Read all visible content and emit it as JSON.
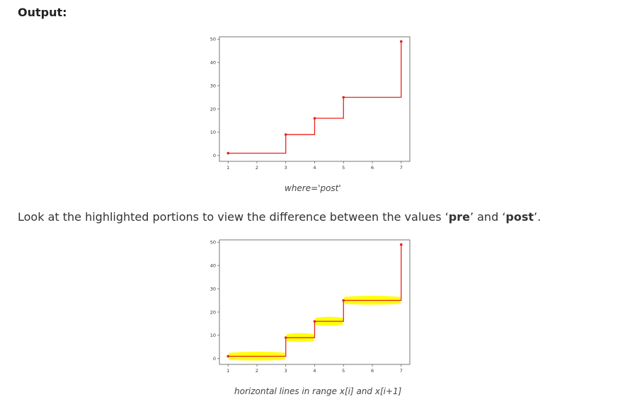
{
  "heading": "Output:",
  "paragraph": {
    "prefix": "Look at the highlighted portions to view the difference between the values ‘",
    "pre": "pre",
    "middle": "’ and ‘",
    "post": "post",
    "suffix": "’."
  },
  "captions": {
    "chart1": "where='post'",
    "chart2": "horizontal lines in range x[i] and x[i+1]"
  },
  "colors": {
    "line": "#e8231a",
    "highlight": "#ffff00"
  },
  "chart_data": [
    {
      "type": "line",
      "step": "post",
      "x": [
        1,
        3,
        4,
        5,
        7
      ],
      "y": [
        1,
        9,
        16,
        25,
        49
      ],
      "xticks": [
        "1",
        "2",
        "3",
        "4",
        "5",
        "6",
        "7"
      ],
      "yticks": [
        "0",
        "10",
        "20",
        "30",
        "40",
        "50"
      ],
      "xlim": [
        0.7,
        7.3
      ],
      "ylim": [
        -2.5,
        51
      ],
      "markers": true
    },
    {
      "type": "line",
      "step": "post",
      "x": [
        1,
        3,
        4,
        5,
        7
      ],
      "y": [
        1,
        9,
        16,
        25,
        49
      ],
      "xticks": [
        "1",
        "2",
        "3",
        "4",
        "5",
        "6",
        "7"
      ],
      "yticks": [
        "0",
        "10",
        "20",
        "30",
        "40",
        "50"
      ],
      "xlim": [
        0.7,
        7.3
      ],
      "ylim": [
        -2.5,
        51
      ],
      "markers": true,
      "highlighted": true
    }
  ]
}
